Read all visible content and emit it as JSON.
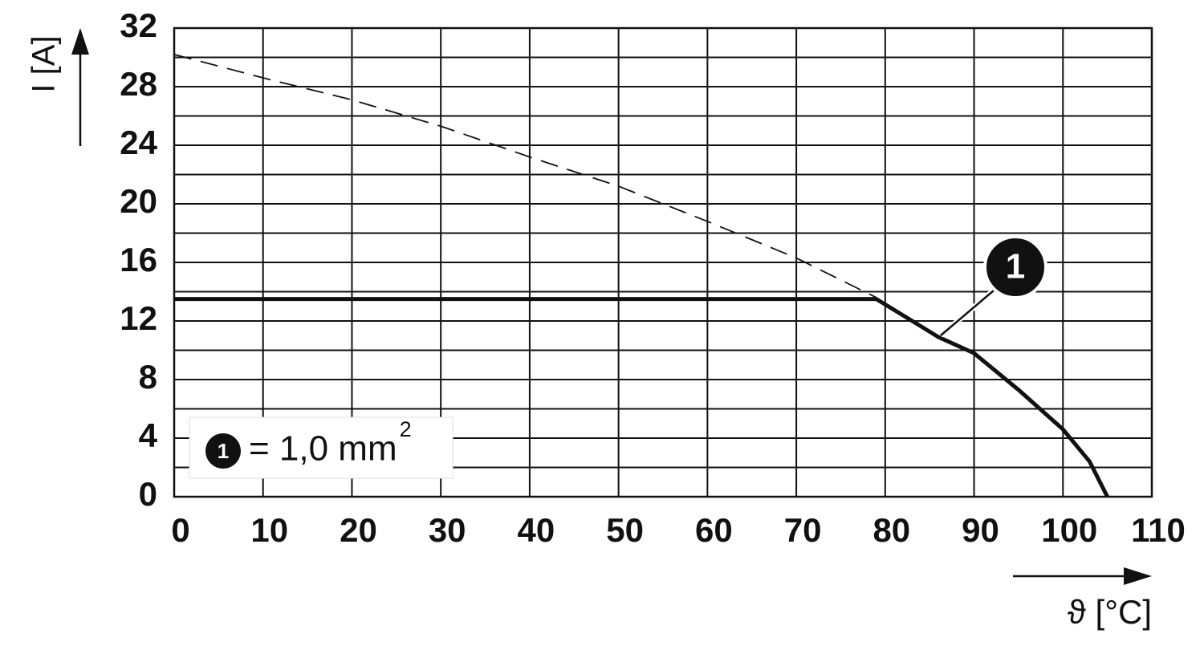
{
  "chart_data": {
    "type": "line",
    "y_label": "I [A]",
    "x_label": "ϑ [°C]",
    "xlim": [
      0,
      110
    ],
    "ylim": [
      0,
      32
    ],
    "xticks": [
      0,
      10,
      20,
      30,
      40,
      50,
      60,
      70,
      80,
      90,
      100,
      110
    ],
    "yticks": [
      0,
      4,
      8,
      12,
      16,
      20,
      24,
      28,
      32
    ],
    "ygrid": [
      0,
      2,
      4,
      6,
      8,
      10,
      12,
      14,
      16,
      18,
      20,
      22,
      24,
      26,
      28,
      30,
      32
    ],
    "grid": true,
    "series": [
      {
        "name": "1",
        "color": "#111111",
        "style": "solid",
        "x": [
          0,
          79,
          86,
          90,
          95,
          100,
          103,
          105
        ],
        "values": [
          13.5,
          13.5,
          10.9,
          9.8,
          7.3,
          4.6,
          2.4,
          0
        ]
      },
      {
        "color": "#111111",
        "style": "dashed",
        "x": [
          0,
          10,
          20,
          30,
          40,
          50,
          60,
          70,
          79
        ],
        "values": [
          30.2,
          28.6,
          27.1,
          25.3,
          23.2,
          21.2,
          18.8,
          16.3,
          13.6
        ]
      }
    ],
    "legend_text": "= 1,0 mm",
    "legend_sup": "2"
  }
}
